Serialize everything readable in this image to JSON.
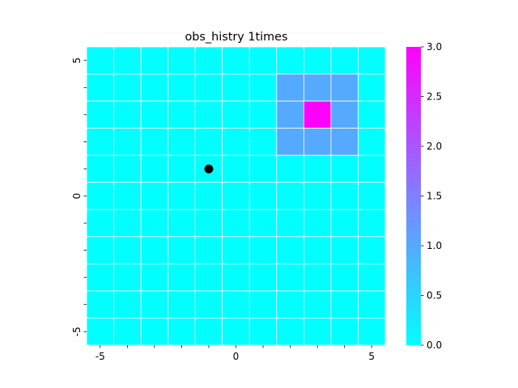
{
  "chart_data": {
    "type": "heatmap",
    "title": "obs_histry  1times",
    "xlabel": "",
    "ylabel": "",
    "x_range": [
      -5.5,
      5.5
    ],
    "y_range": [
      -5.5,
      5.5
    ],
    "x_ticks": [
      -5,
      -4,
      -3,
      -2,
      -1,
      0,
      1,
      2,
      3,
      4,
      5
    ],
    "x_tick_labels": [
      "-5",
      "",
      "",
      "",
      "",
      "0",
      "",
      "",
      "",
      "",
      "5"
    ],
    "y_ticks": [
      5,
      4,
      3,
      2,
      1,
      0,
      -1,
      -2,
      -3,
      -4,
      -5
    ],
    "y_tick_labels": [
      "5",
      "",
      "",
      "",
      "",
      "0",
      "",
      "",
      "",
      "",
      "-5"
    ],
    "grid": true,
    "grid_color": "#ffffff",
    "rows_top_to_bottom": [
      [
        0,
        0,
        0,
        0,
        0,
        0,
        0,
        0,
        0,
        0,
        0
      ],
      [
        0,
        0,
        0,
        0,
        0,
        0,
        0,
        1,
        1,
        1,
        0
      ],
      [
        0,
        0,
        0,
        0,
        0,
        0,
        0,
        1,
        3,
        1,
        0
      ],
      [
        0,
        0,
        0,
        0,
        0,
        0,
        0,
        1,
        1,
        1,
        0
      ],
      [
        0,
        0,
        0,
        0,
        0,
        0,
        0,
        0,
        0,
        0,
        0
      ],
      [
        0,
        0,
        0,
        0,
        0,
        0,
        0,
        0,
        0,
        0,
        0
      ],
      [
        0,
        0,
        0,
        0,
        0,
        0,
        0,
        0,
        0,
        0,
        0
      ],
      [
        0,
        0,
        0,
        0,
        0,
        0,
        0,
        0,
        0,
        0,
        0
      ],
      [
        0,
        0,
        0,
        0,
        0,
        0,
        0,
        0,
        0,
        0,
        0
      ],
      [
        0,
        0,
        0,
        0,
        0,
        0,
        0,
        0,
        0,
        0,
        0
      ],
      [
        0,
        0,
        0,
        0,
        0,
        0,
        0,
        0,
        0,
        0,
        0
      ]
    ],
    "marker": {
      "x": -1,
      "y": 1,
      "color": "#000000"
    },
    "colormap": "cool",
    "color_min": "#00ffff",
    "color_max": "#ff00ff",
    "colorbar": {
      "range": [
        0.0,
        3.0
      ],
      "ticks": [
        0.0,
        0.5,
        1.0,
        1.5,
        2.0,
        2.5,
        3.0
      ],
      "tick_labels": [
        "0.0",
        "0.5",
        "1.0",
        "1.5",
        "2.0",
        "2.5",
        "3.0"
      ]
    }
  }
}
